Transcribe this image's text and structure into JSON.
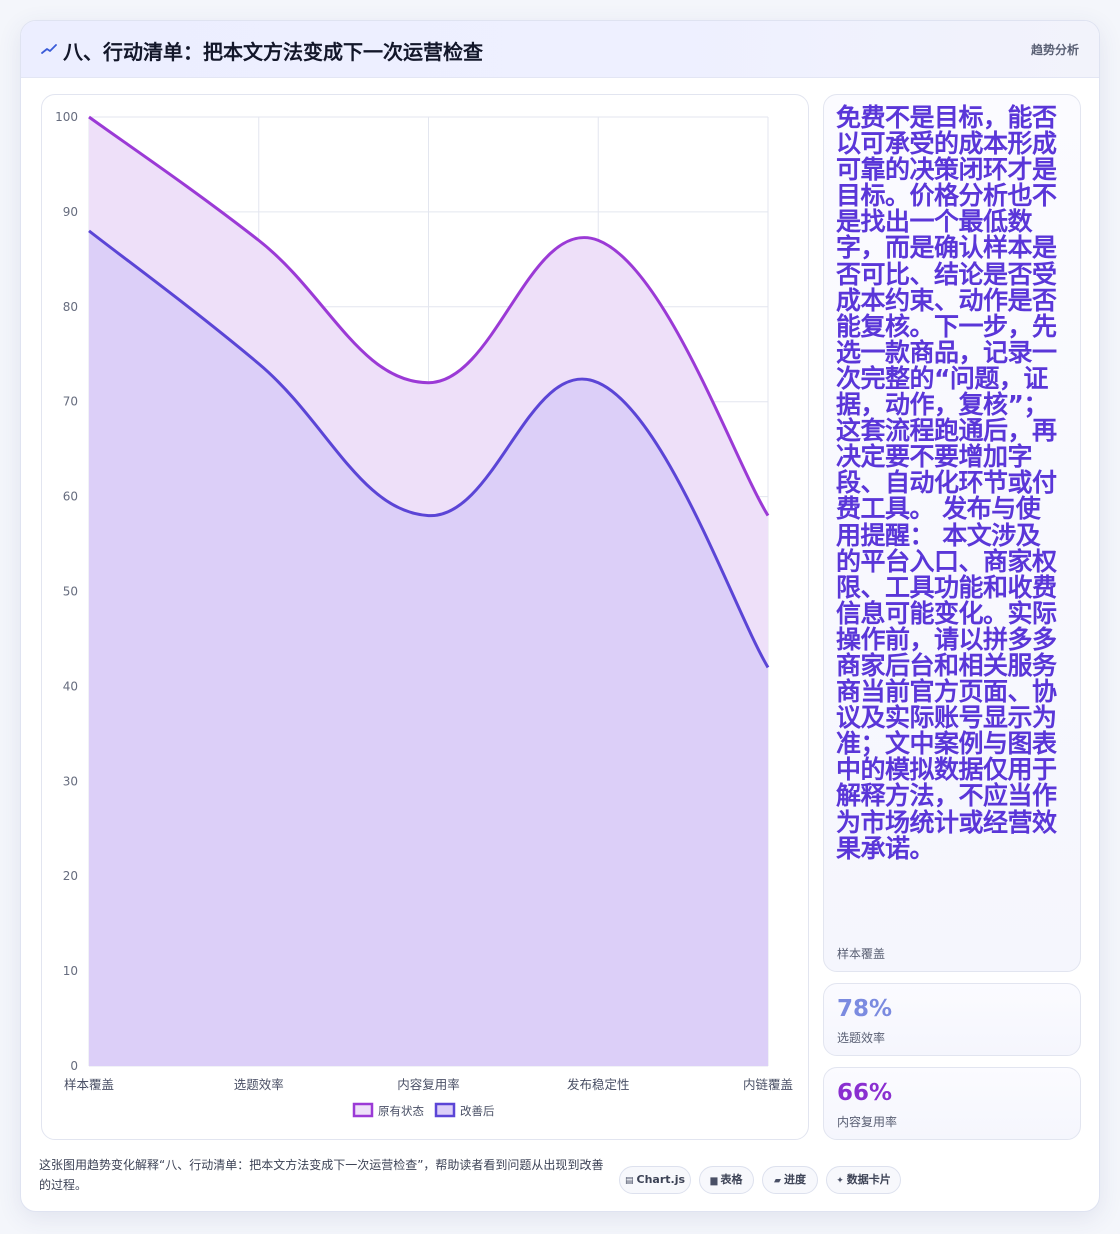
{
  "header": {
    "title": "八、行动清单：把本文方法变成下一次运营检查",
    "tag": "趋势分析",
    "icon": "trend-icon"
  },
  "side": {
    "quote": "免费不是目标，能否以可承受的成本形成可靠的决策闭环才是目标。价格分析也不是找出一个最低数字，而是确认样本是否可比、结论是否受成本约束、动作是否能复核。下一步，先选一款商品，记录一次完整的“问题，证据，动作，复核”；这套流程跑通后，再决定要不要增加字段、自动化环节或付费工具。 发布与使用提醒： 本文涉及的平台入口、商家权限、工具功能和收费信息可能变化。实际操作前，请以拼多多商家后台和相关服务商当前官方页面、协议及实际账号显示为准；文中案例与图表中的模拟数据仅用于解释方法，不应当作为市场统计或经营效果承诺。",
    "quote_label": "样本覆盖"
  },
  "stats": [
    {
      "value": "78%",
      "label": "选题效率",
      "color": "#7b8be0"
    },
    {
      "value": "66%",
      "label": "内容复用率",
      "color": "#8a2fd0"
    }
  ],
  "caption": "这张图用趋势变化解释“八、行动清单：把本文方法变成下一次运营检查”，帮助读者看到问题从出现到改善的过程。",
  "chips": [
    {
      "icon": "table-icon",
      "glyph": "▤",
      "label": "Chart.js"
    },
    {
      "icon": "grid-icon",
      "glyph": "▆",
      "label": "表格"
    },
    {
      "icon": "progress-icon",
      "glyph": "▰",
      "label": "进度"
    },
    {
      "icon": "sparkle-icon",
      "glyph": "✦",
      "label": "数据卡片"
    }
  ],
  "chart_data": {
    "type": "area",
    "categories": [
      "样本覆盖",
      "选题效率",
      "内容复用率",
      "发布稳定性",
      "内链覆盖"
    ],
    "series": [
      {
        "name": "原有状态",
        "values": [
          100,
          87,
          72,
          87,
          58
        ],
        "color": "#9b3ad6",
        "fill": "#eee0f9"
      },
      {
        "name": "改善后",
        "values": [
          88,
          74,
          58,
          72,
          42
        ],
        "color": "#5b45d6",
        "fill": "#dccff8"
      }
    ],
    "ylim": [
      0,
      100
    ],
    "yticks": [
      0,
      10,
      20,
      30,
      40,
      50,
      60,
      70,
      80,
      90,
      100
    ],
    "grid": true,
    "legend": "bottom"
  }
}
